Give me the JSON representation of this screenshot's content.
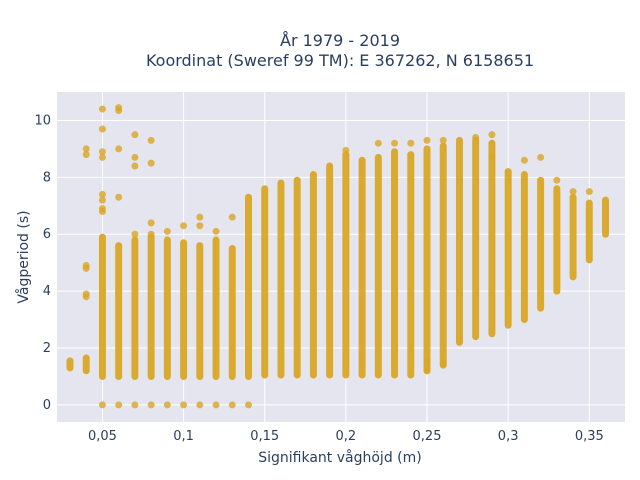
{
  "chart_data": {
    "type": "scatter",
    "title_line1": "År 1979 - 2019",
    "title_line2": "Koordinat (Sweref 99 TM): E 367262, N 6158651",
    "xlabel": "Signifikant våghöjd (m)",
    "ylabel": "Vågperiod (s)",
    "xlim": [
      0.022,
      0.372
    ],
    "ylim": [
      -0.6,
      11.0
    ],
    "x_ticks": [
      0.05,
      0.1,
      0.15,
      0.2,
      0.25,
      0.3,
      0.35
    ],
    "x_tick_labels": [
      "0,05",
      "0,1",
      "0,15",
      "0,2",
      "0,25",
      "0,3",
      "0,35"
    ],
    "y_ticks": [
      0,
      2,
      4,
      6,
      8,
      10
    ],
    "y_tick_labels": [
      "0",
      "2",
      "4",
      "6",
      "8",
      "10"
    ],
    "grid": true,
    "marker_color": "#DAA520",
    "background_color": "#E5E5F0",
    "columns": [
      {
        "x": 0.03,
        "ymin": 1.3,
        "ymax": 1.55
      },
      {
        "x": 0.04,
        "ymin": 1.2,
        "ymax": 1.65
      },
      {
        "x": 0.05,
        "ymin": 1.0,
        "ymax": 5.9
      },
      {
        "x": 0.06,
        "ymin": 1.0,
        "ymax": 5.6
      },
      {
        "x": 0.07,
        "ymin": 1.0,
        "ymax": 5.8
      },
      {
        "x": 0.08,
        "ymin": 1.0,
        "ymax": 5.9
      },
      {
        "x": 0.09,
        "ymin": 1.0,
        "ymax": 5.8
      },
      {
        "x": 0.1,
        "ymin": 1.0,
        "ymax": 5.7
      },
      {
        "x": 0.11,
        "ymin": 1.0,
        "ymax": 5.6
      },
      {
        "x": 0.12,
        "ymin": 1.0,
        "ymax": 5.8
      },
      {
        "x": 0.13,
        "ymin": 1.0,
        "ymax": 5.5
      },
      {
        "x": 0.14,
        "ymin": 1.0,
        "ymax": 7.3
      },
      {
        "x": 0.15,
        "ymin": 1.05,
        "ymax": 7.6
      },
      {
        "x": 0.16,
        "ymin": 1.05,
        "ymax": 7.8
      },
      {
        "x": 0.17,
        "ymin": 1.05,
        "ymax": 7.9
      },
      {
        "x": 0.18,
        "ymin": 1.05,
        "ymax": 8.1
      },
      {
        "x": 0.19,
        "ymin": 1.05,
        "ymax": 8.4
      },
      {
        "x": 0.2,
        "ymin": 1.05,
        "ymax": 8.8
      },
      {
        "x": 0.21,
        "ymin": 1.05,
        "ymax": 8.6
      },
      {
        "x": 0.22,
        "ymin": 1.05,
        "ymax": 8.7
      },
      {
        "x": 0.23,
        "ymin": 1.05,
        "ymax": 8.9
      },
      {
        "x": 0.24,
        "ymin": 1.05,
        "ymax": 8.8
      },
      {
        "x": 0.25,
        "ymin": 1.2,
        "ymax": 9.0
      },
      {
        "x": 0.26,
        "ymin": 1.4,
        "ymax": 9.1
      },
      {
        "x": 0.27,
        "ymin": 2.2,
        "ymax": 9.3
      },
      {
        "x": 0.28,
        "ymin": 2.4,
        "ymax": 9.3
      },
      {
        "x": 0.29,
        "ymin": 2.5,
        "ymax": 9.2
      },
      {
        "x": 0.3,
        "ymin": 2.8,
        "ymax": 8.2
      },
      {
        "x": 0.31,
        "ymin": 3.0,
        "ymax": 8.1
      },
      {
        "x": 0.32,
        "ymin": 3.4,
        "ymax": 7.9
      },
      {
        "x": 0.33,
        "ymin": 4.0,
        "ymax": 7.6
      },
      {
        "x": 0.34,
        "ymin": 4.5,
        "ymax": 7.3
      },
      {
        "x": 0.35,
        "ymin": 5.1,
        "ymax": 7.1
      },
      {
        "x": 0.36,
        "ymin": 6.0,
        "ymax": 7.2
      }
    ],
    "scattered_points": [
      {
        "x": 0.05,
        "y": 0
      },
      {
        "x": 0.06,
        "y": 0
      },
      {
        "x": 0.07,
        "y": 0
      },
      {
        "x": 0.08,
        "y": 0
      },
      {
        "x": 0.09,
        "y": 0
      },
      {
        "x": 0.1,
        "y": 0
      },
      {
        "x": 0.11,
        "y": 0
      },
      {
        "x": 0.12,
        "y": 0
      },
      {
        "x": 0.13,
        "y": 0
      },
      {
        "x": 0.14,
        "y": 0
      },
      {
        "x": 0.04,
        "y": 9.0
      },
      {
        "x": 0.04,
        "y": 8.8
      },
      {
        "x": 0.04,
        "y": 4.9
      },
      {
        "x": 0.04,
        "y": 4.8
      },
      {
        "x": 0.04,
        "y": 3.9
      },
      {
        "x": 0.04,
        "y": 3.8
      },
      {
        "x": 0.05,
        "y": 10.4
      },
      {
        "x": 0.05,
        "y": 9.7
      },
      {
        "x": 0.05,
        "y": 8.9
      },
      {
        "x": 0.05,
        "y": 8.7
      },
      {
        "x": 0.05,
        "y": 7.4
      },
      {
        "x": 0.05,
        "y": 7.2
      },
      {
        "x": 0.05,
        "y": 6.9
      },
      {
        "x": 0.05,
        "y": 6.8
      },
      {
        "x": 0.06,
        "y": 10.45
      },
      {
        "x": 0.06,
        "y": 10.35
      },
      {
        "x": 0.06,
        "y": 9.0
      },
      {
        "x": 0.06,
        "y": 7.3
      },
      {
        "x": 0.07,
        "y": 9.5
      },
      {
        "x": 0.07,
        "y": 8.7
      },
      {
        "x": 0.07,
        "y": 8.4
      },
      {
        "x": 0.07,
        "y": 6.0
      },
      {
        "x": 0.08,
        "y": 9.3
      },
      {
        "x": 0.08,
        "y": 8.5
      },
      {
        "x": 0.08,
        "y": 6.4
      },
      {
        "x": 0.08,
        "y": 6.0
      },
      {
        "x": 0.09,
        "y": 6.1
      },
      {
        "x": 0.1,
        "y": 6.3
      },
      {
        "x": 0.11,
        "y": 6.6
      },
      {
        "x": 0.11,
        "y": 6.3
      },
      {
        "x": 0.12,
        "y": 6.1
      },
      {
        "x": 0.13,
        "y": 6.6
      },
      {
        "x": 0.2,
        "y": 8.95
      },
      {
        "x": 0.22,
        "y": 9.2
      },
      {
        "x": 0.23,
        "y": 9.2
      },
      {
        "x": 0.24,
        "y": 9.2
      },
      {
        "x": 0.25,
        "y": 9.3
      },
      {
        "x": 0.26,
        "y": 9.3
      },
      {
        "x": 0.28,
        "y": 9.4
      },
      {
        "x": 0.29,
        "y": 9.5
      },
      {
        "x": 0.29,
        "y": 8.7
      },
      {
        "x": 0.31,
        "y": 8.6
      },
      {
        "x": 0.32,
        "y": 8.7
      },
      {
        "x": 0.33,
        "y": 7.9
      },
      {
        "x": 0.34,
        "y": 7.5
      },
      {
        "x": 0.35,
        "y": 7.5
      },
      {
        "x": 0.25,
        "y": 1.5
      },
      {
        "x": 0.25,
        "y": 1.2
      },
      {
        "x": 0.26,
        "y": 1.45
      }
    ]
  }
}
